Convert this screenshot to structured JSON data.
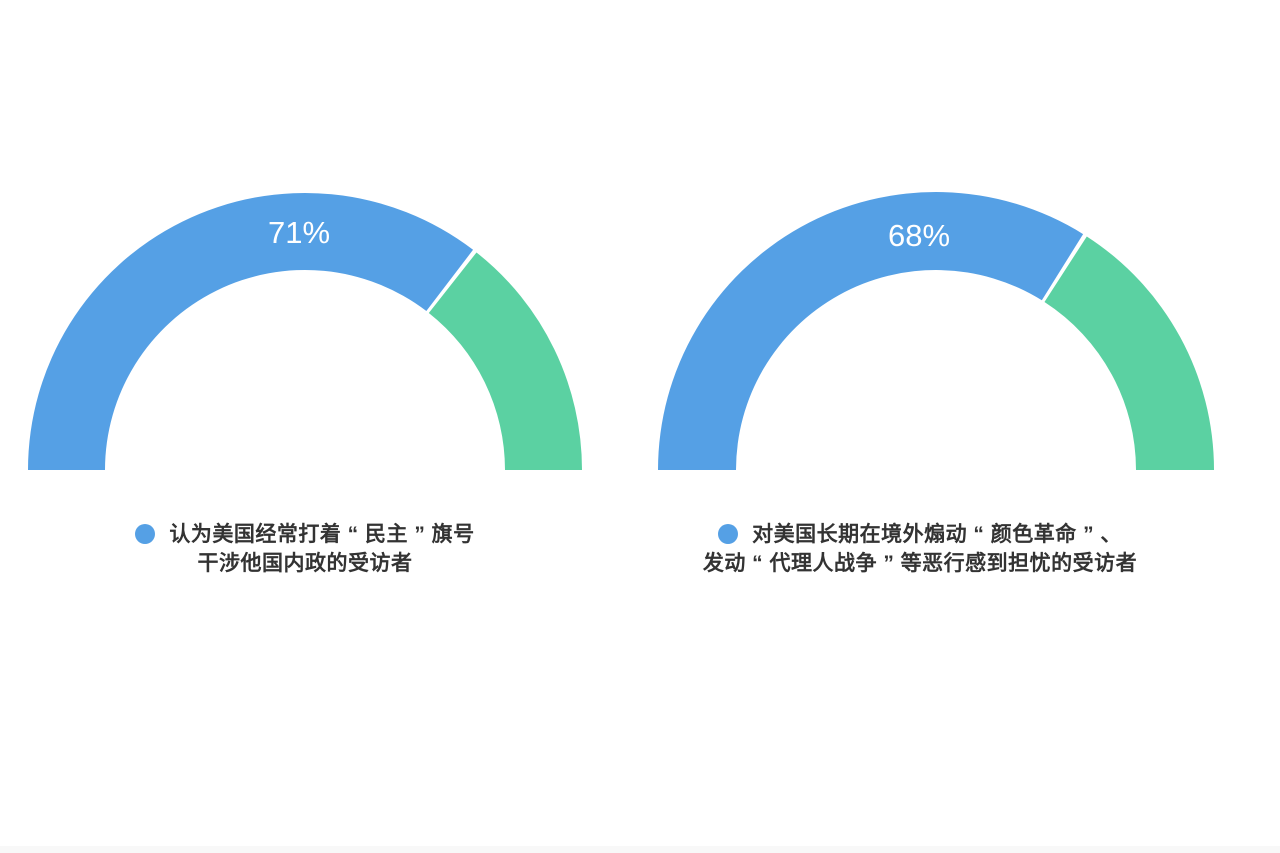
{
  "colors": {
    "series_blue": "#55a0e5",
    "remainder_green": "#5bd1a2",
    "percent_text": "#ffffff",
    "legend_text": "#333333",
    "background": "#ffffff"
  },
  "chart_data": [
    {
      "type": "gauge",
      "shape": "semicircle-donut",
      "angle_span_deg": 180,
      "value_percent": 71,
      "remainder_percent": 29,
      "percent_label": "71%",
      "series_color": "#55a0e5",
      "remainder_color": "#5bd1a2",
      "legend_position": "bottom",
      "legend": {
        "line1": "认为美国经常打着 “ 民主 ” 旗号",
        "line2": "干涉他国内政的受访者"
      }
    },
    {
      "type": "gauge",
      "shape": "semicircle-donut",
      "angle_span_deg": 180,
      "value_percent": 68,
      "remainder_percent": 32,
      "percent_label": "68%",
      "series_color": "#55a0e5",
      "remainder_color": "#5bd1a2",
      "legend_position": "bottom",
      "legend": {
        "line1": "对美国长期在境外煽动 “ 颜色革命 ” 、",
        "line2": "发动 “ 代理人战争 ” 等恶行感到担忧的受访者"
      }
    }
  ]
}
